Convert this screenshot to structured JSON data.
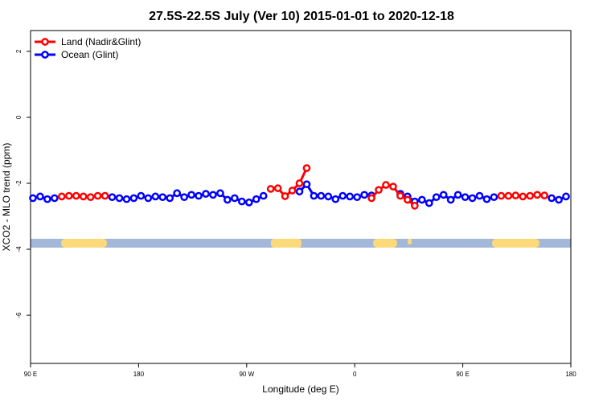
{
  "chart_data": {
    "type": "line",
    "title": "27.5S-22.5S July (Ver 10)   2015-01-01 to 2020-12-18",
    "x_label": "Longitude (deg E)",
    "y_label": "XCO2 - MLO trend (ppm)",
    "x": [
      92,
      98,
      104,
      110,
      116,
      122,
      128,
      134,
      140,
      146,
      152,
      158,
      164,
      170,
      176,
      182,
      188,
      194,
      200,
      206,
      212,
      218,
      224,
      230,
      236,
      242,
      248,
      254,
      260,
      266,
      272,
      278,
      284,
      290,
      296,
      302,
      308,
      314,
      320,
      326,
      332,
      338,
      344,
      350,
      356,
      362,
      368,
      374,
      380,
      386,
      392,
      398,
      404,
      410,
      416,
      422,
      428,
      434,
      440,
      446,
      452,
      458,
      464,
      470,
      476,
      482,
      488,
      494,
      500,
      506,
      512,
      518,
      524,
      530,
      536
    ],
    "series": [
      {
        "name": "Land (Nadir&Glint)",
        "color": "#ff0000",
        "values": [
          null,
          null,
          null,
          null,
          -2.4,
          -2.38,
          -2.38,
          -2.4,
          -2.42,
          -2.38,
          -2.38,
          null,
          null,
          null,
          null,
          null,
          null,
          null,
          null,
          null,
          null,
          null,
          null,
          null,
          null,
          null,
          null,
          null,
          null,
          null,
          null,
          null,
          null,
          -2.17,
          -2.15,
          -2.39,
          -2.22,
          -2.0,
          -1.54,
          null,
          null,
          null,
          null,
          null,
          null,
          null,
          null,
          -2.45,
          -2.2,
          -2.05,
          -2.1,
          -2.38,
          -2.5,
          -2.68,
          null,
          null,
          null,
          null,
          null,
          null,
          null,
          null,
          null,
          null,
          null,
          -2.38,
          -2.38,
          -2.37,
          -2.4,
          -2.38,
          -2.35,
          -2.37,
          null,
          null,
          null
        ]
      },
      {
        "name": "Ocean (Glint)",
        "color": "#0000ff",
        "values": [
          -2.45,
          -2.4,
          -2.48,
          -2.45,
          null,
          null,
          null,
          null,
          null,
          null,
          null,
          -2.42,
          -2.45,
          -2.48,
          -2.45,
          -2.38,
          -2.45,
          -2.4,
          -2.42,
          -2.45,
          -2.3,
          -2.42,
          -2.35,
          -2.38,
          -2.32,
          -2.35,
          -2.3,
          -2.5,
          -2.45,
          -2.55,
          -2.58,
          -2.48,
          -2.38,
          null,
          null,
          null,
          null,
          -2.25,
          -2.03,
          -2.38,
          -2.38,
          -2.4,
          -2.48,
          -2.38,
          -2.4,
          -2.42,
          -2.35,
          -2.37,
          null,
          null,
          null,
          -2.32,
          -2.4,
          -2.55,
          -2.5,
          -2.6,
          -2.42,
          -2.35,
          -2.5,
          -2.35,
          -2.42,
          -2.45,
          -2.38,
          -2.48,
          -2.42,
          null,
          null,
          null,
          null,
          null,
          null,
          null,
          -2.45,
          -2.5,
          -2.4
        ]
      }
    ],
    "xlim": [
      90,
      540
    ],
    "xticks": [
      {
        "value": 90,
        "label": "90 E"
      },
      180,
      {
        "value": 270,
        "label": "90 W"
      },
      {
        "value": 360,
        "label": "0"
      },
      {
        "value": 450,
        "label": "90 E"
      },
      {
        "value": 540,
        "label": "180"
      }
    ],
    "ylim": [
      -7.46,
      2.63
    ],
    "yticks": [
      -6,
      -4,
      -2,
      0,
      2
    ],
    "legend": "upper left"
  }
}
